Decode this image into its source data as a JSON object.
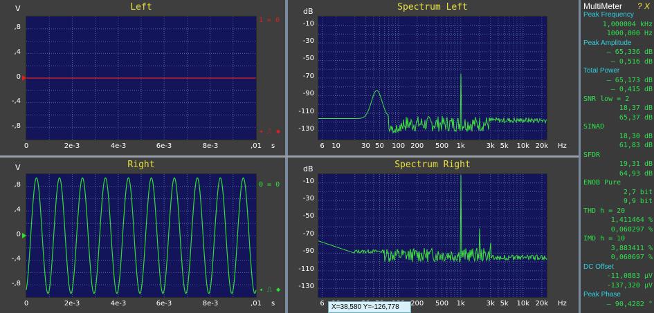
{
  "panels": {
    "left_scope": {
      "title": "Left",
      "unit": "V",
      "y_ticks": [
        ",8",
        ",4",
        "0",
        "-,4",
        "-,8"
      ],
      "x_ticks": [
        "0",
        "2e-3",
        "4e-3",
        "6e-3",
        "8e-3",
        ",01"
      ],
      "x_unit": "s",
      "marker_top": "1 = 0",
      "marker_bottom": "◂ ⎍ ◆",
      "trace_color": "#e02020"
    },
    "right_scope": {
      "title": "Right",
      "unit": "V",
      "y_ticks": [
        ",8",
        ",4",
        "0",
        "-,4",
        "-,8"
      ],
      "x_ticks": [
        "0",
        "2e-3",
        "4e-3",
        "6e-3",
        "8e-3",
        ",01"
      ],
      "x_unit": "s",
      "marker_top": "0 = 0",
      "marker_bottom": "◂ ⎍ ◆",
      "trace_color": "#30e030"
    },
    "spectrum_left": {
      "title": "Spectrum Left",
      "unit": "dB",
      "y_ticks": [
        "-10",
        "-30",
        "-50",
        "-70",
        "-90",
        "-110",
        "-130"
      ],
      "x_ticks": [
        "6",
        "10",
        "30",
        "50",
        "100",
        "200",
        "500",
        "1k",
        "3k",
        "5k",
        "10k",
        "20k"
      ],
      "x_unit": "Hz"
    },
    "spectrum_right": {
      "title": "Spectrum Right",
      "unit": "dB",
      "y_ticks": [
        "-10",
        "-30",
        "-50",
        "-70",
        "-90",
        "-110",
        "-130"
      ],
      "x_ticks": [
        "6",
        "10",
        "30",
        "50",
        "100",
        "200",
        "500",
        "1k",
        "3k",
        "5k",
        "10k",
        "20k"
      ],
      "x_unit": "Hz"
    }
  },
  "coord_readout": "X=38,580   Y=-126,778",
  "multimeter": {
    "title": "MultiMeter",
    "title_icons": "? X",
    "rows": [
      {
        "kind": "head",
        "text": "Peak Frequency"
      },
      {
        "kind": "val",
        "text": "1,000004  kHz"
      },
      {
        "kind": "val",
        "text": "1000,000   Hz"
      },
      {
        "kind": "head",
        "text": "Peak Amplitude"
      },
      {
        "kind": "val",
        "text": "– 65,336 dB"
      },
      {
        "kind": "val",
        "text": "–  0,516 dB"
      },
      {
        "kind": "head",
        "text": "Total Power"
      },
      {
        "kind": "val",
        "text": "– 65,173 dB"
      },
      {
        "kind": "val",
        "text": "–  0,415 dB"
      },
      {
        "kind": "key",
        "text": "SNR   low = 2"
      },
      {
        "kind": "val",
        "text": "18,37 dB"
      },
      {
        "kind": "val",
        "text": "65,37 dB"
      },
      {
        "kind": "key",
        "text": "SINAD"
      },
      {
        "kind": "val",
        "text": "18,30 dB"
      },
      {
        "kind": "val",
        "text": "61,83 dB"
      },
      {
        "kind": "key",
        "text": "SFDR"
      },
      {
        "kind": "val",
        "text": "19,31 dB"
      },
      {
        "kind": "val",
        "text": "64,93 dB"
      },
      {
        "kind": "key",
        "text": "ENOB    Pure"
      },
      {
        "kind": "val",
        "text": "2,7 bit"
      },
      {
        "kind": "val",
        "text": "9,9 bit"
      },
      {
        "kind": "key",
        "text": "THD     h = 20"
      },
      {
        "kind": "val",
        "text": "1,411464 %"
      },
      {
        "kind": "val",
        "text": "0,060297 %"
      },
      {
        "kind": "key",
        "text": "IMD     h = 10"
      },
      {
        "kind": "val",
        "text": "3,883411 %"
      },
      {
        "kind": "val",
        "text": "0,060697 %"
      },
      {
        "kind": "head",
        "text": "DC Offset"
      },
      {
        "kind": "val",
        "text": "-11,0883 µV"
      },
      {
        "kind": "val",
        "text": "-137,320 µV"
      },
      {
        "kind": "head",
        "text": "Peak Phase"
      },
      {
        "kind": "val",
        "text": "– 90,4282 °"
      }
    ]
  },
  "colors": {
    "plot_bg": "#14145a",
    "grid": "#4a6a9a",
    "spectrum_trace": "#40e040",
    "title": "#e8e040"
  }
}
